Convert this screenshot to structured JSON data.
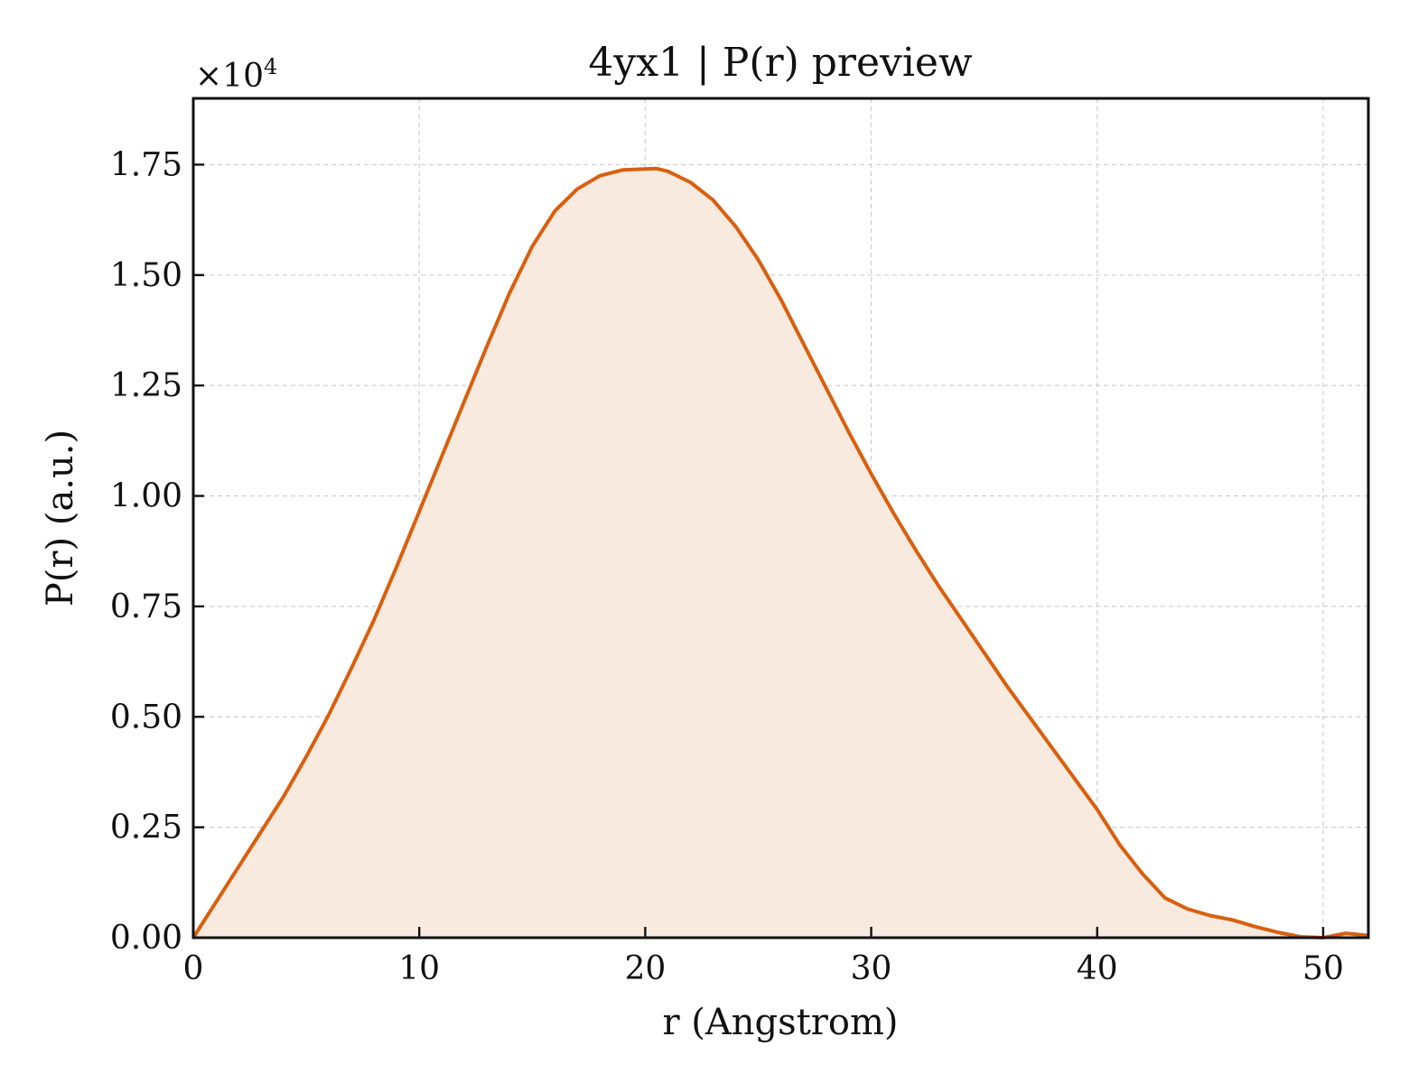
{
  "chart_data": {
    "type": "area",
    "title": "4yx1 | P(r) preview",
    "xlabel": "r (Angstrom)",
    "ylabel": "P(r) (a.u.)",
    "y_scale_label": "×10",
    "y_scale_exponent": "4",
    "xlim": [
      0,
      52
    ],
    "ylim": [
      0,
      1.9
    ],
    "xticks": [
      0,
      10,
      20,
      30,
      40,
      50
    ],
    "xtick_labels": [
      "0",
      "10",
      "20",
      "30",
      "40",
      "50"
    ],
    "yticks": [
      0,
      0.25,
      0.5,
      0.75,
      1.0,
      1.25,
      1.5,
      1.75
    ],
    "ytick_labels": [
      "0.00",
      "0.25",
      "0.50",
      "0.75",
      "1.00",
      "1.25",
      "1.50",
      "1.75"
    ],
    "grid": true,
    "line_color": "#d95f0e",
    "fill_color": "#f9eadf",
    "series": [
      {
        "x": [
          0,
          1,
          2,
          3,
          4,
          5,
          6,
          7,
          8,
          9,
          10,
          11,
          12,
          13,
          14,
          15,
          16,
          17,
          18,
          19,
          20,
          20.5,
          21,
          22,
          23,
          24,
          25,
          26,
          27,
          28,
          29,
          30,
          31,
          32,
          33,
          34,
          35,
          36,
          37,
          38,
          39,
          40,
          41,
          42,
          43,
          44,
          45,
          46,
          47,
          48,
          49,
          50,
          51,
          52
        ],
        "y": [
          0.0,
          0.08,
          0.16,
          0.24,
          0.32,
          0.41,
          0.505,
          0.61,
          0.72,
          0.84,
          0.965,
          1.09,
          1.215,
          1.34,
          1.46,
          1.565,
          1.645,
          1.695,
          1.725,
          1.738,
          1.74,
          1.741,
          1.735,
          1.71,
          1.67,
          1.61,
          1.535,
          1.445,
          1.345,
          1.245,
          1.145,
          1.05,
          0.96,
          0.875,
          0.795,
          0.72,
          0.645,
          0.57,
          0.5,
          0.43,
          0.36,
          0.29,
          0.21,
          0.145,
          0.09,
          0.065,
          0.05,
          0.04,
          0.025,
          0.012,
          0.002,
          0.0,
          0.01,
          0.005
        ]
      }
    ]
  }
}
